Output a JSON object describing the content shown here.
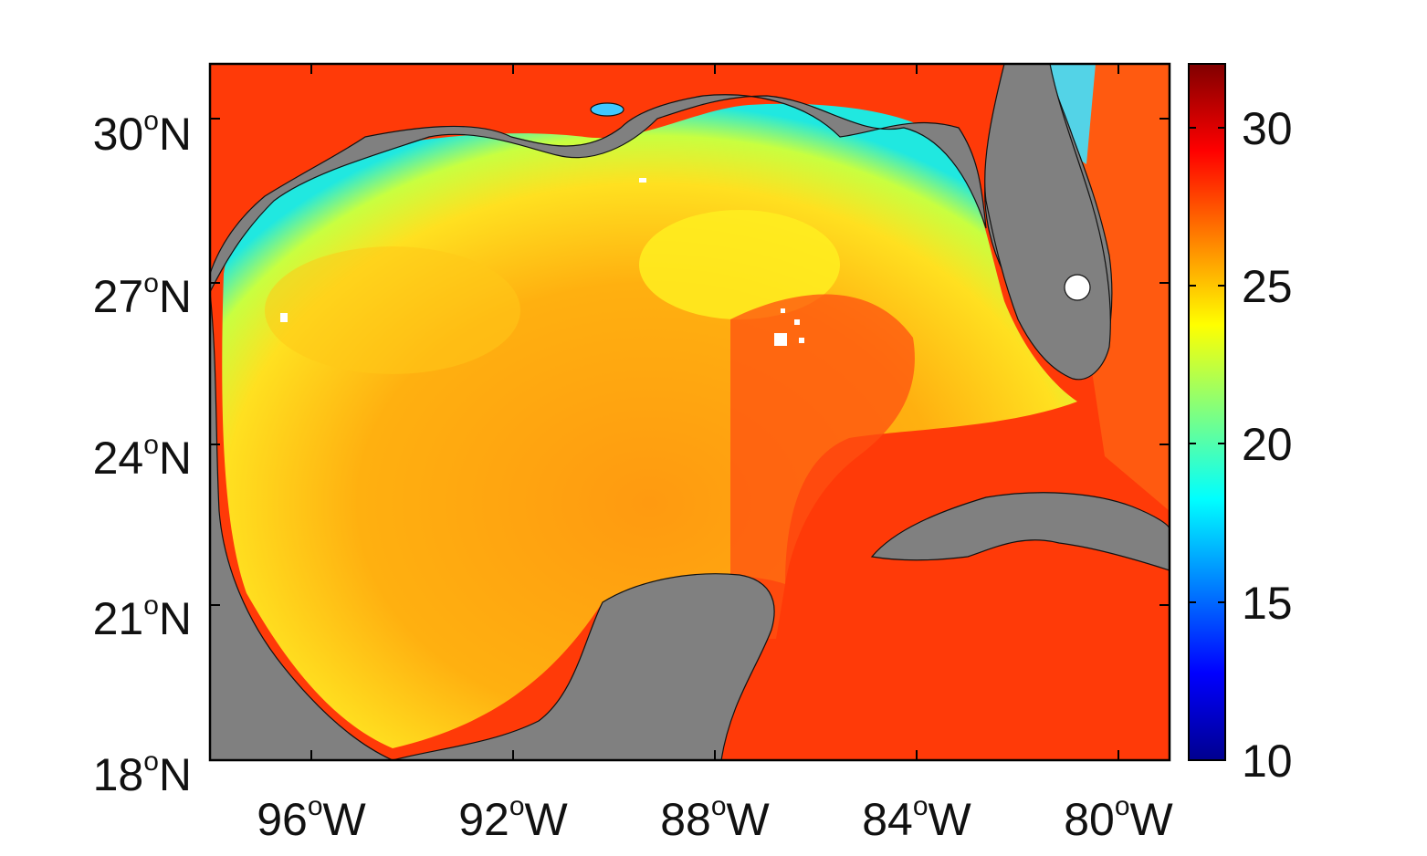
{
  "map": {
    "region": "Gulf of Mexico",
    "lon_range": [
      -98,
      -79
    ],
    "lat_range": [
      18,
      31
    ],
    "lon_ticks": [
      {
        "value": -96,
        "num": "96",
        "hemi": "W"
      },
      {
        "value": -92,
        "num": "92",
        "hemi": "W"
      },
      {
        "value": -88,
        "num": "88",
        "hemi": "W"
      },
      {
        "value": -84,
        "num": "84",
        "hemi": "W"
      },
      {
        "value": -80,
        "num": "80",
        "hemi": "W"
      }
    ],
    "lat_ticks": [
      {
        "value": 18,
        "num": "18",
        "hemi": "N"
      },
      {
        "value": 21,
        "num": "21",
        "hemi": "N"
      },
      {
        "value": 24,
        "num": "24",
        "hemi": "N"
      },
      {
        "value": 27,
        "num": "27",
        "hemi": "N"
      },
      {
        "value": 30,
        "num": "30",
        "hemi": "N"
      }
    ],
    "degree_symbol": "o",
    "land_color": "#808080",
    "colors": {
      "warm": "#ff3300",
      "mid": "#ffd000",
      "cool": "#00ffff"
    }
  },
  "colorbar": {
    "min": 10,
    "max": 32,
    "colormap": "jet",
    "ticks": [
      "10",
      "15",
      "20",
      "25",
      "30"
    ]
  }
}
